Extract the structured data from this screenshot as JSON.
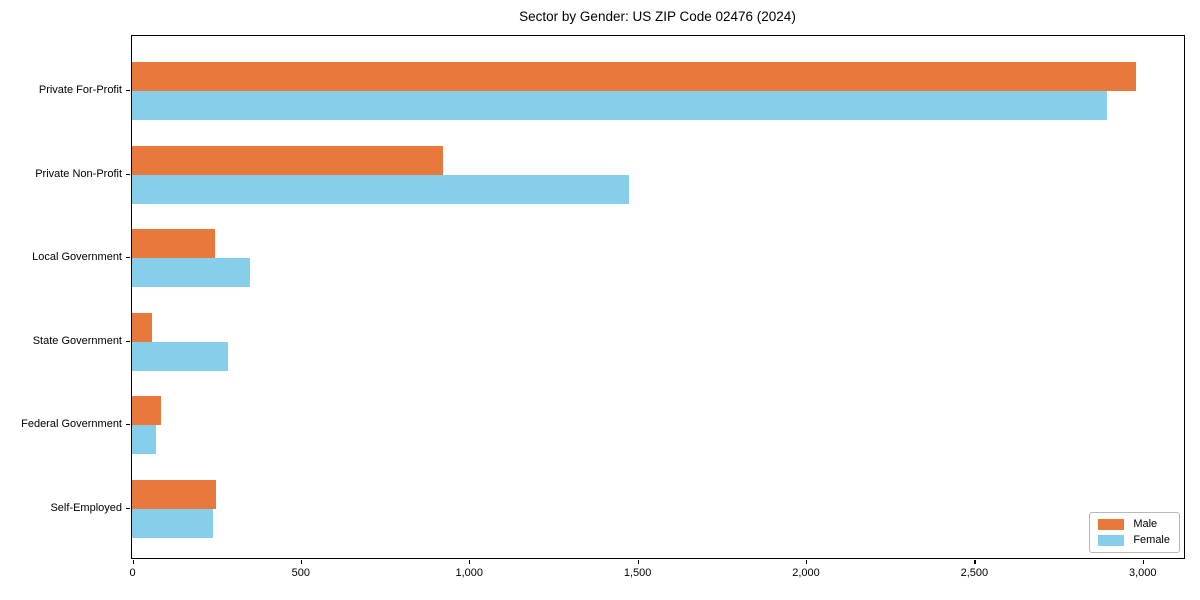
{
  "title": "Sector by Gender: US ZIP Code 02476 (2024)",
  "chart_data": {
    "type": "bar",
    "orientation": "horizontal",
    "title": "Sector by Gender: US ZIP Code 02476 (2024)",
    "xlabel": "",
    "ylabel": "",
    "categories": [
      "Private For-Profit",
      "Private Non-Profit",
      "Local Government",
      "State Government",
      "Federal Government",
      "Self-Employed"
    ],
    "series": [
      {
        "name": "Male",
        "color": "#E8793C",
        "values": [
          2980,
          925,
          245,
          60,
          85,
          250
        ]
      },
      {
        "name": "Female",
        "color": "#87CEEA",
        "values": [
          2895,
          1475,
          350,
          285,
          70,
          240
        ]
      }
    ],
    "xlim": [
      0,
      3124
    ],
    "xticks": [
      0,
      500,
      1000,
      1500,
      2000,
      2500,
      3000
    ],
    "xtick_labels": [
      "0",
      "500",
      "1,000",
      "1,500",
      "2,000",
      "2,500",
      "3,000"
    ],
    "grid": false,
    "legend_position": "lower right",
    "spine_color": "#000000",
    "background_color": "#ffffff"
  },
  "legend": {
    "items": [
      {
        "label": "Male",
        "color": "#E8793C"
      },
      {
        "label": "Female",
        "color": "#87CEEA"
      }
    ]
  }
}
